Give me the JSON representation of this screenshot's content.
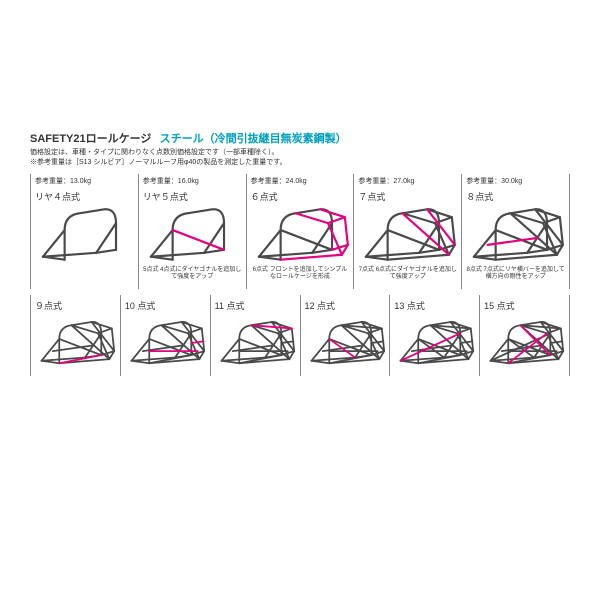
{
  "header": {
    "title": "SAFETY21ロールケージ",
    "subtitle": "スチール（冷間引抜継目無炭素鋼製）",
    "subtitle_color": "#00a0c0",
    "desc_line1": "価格設定は、車種・タイプに関わりなく点数別価格設定です（一部車種除く）。",
    "desc_line2": "※参考重量は［S13 シルビア］ノーマルルーフ用φ40の製品を測定した重量です。"
  },
  "colors": {
    "cage": "#4a4a4a",
    "accent": "#e6007e",
    "border": "#888888",
    "text": "#333333"
  },
  "row1": [
    {
      "weight": "参考重量：13.0kg",
      "label": "リヤ４点式",
      "variant": "r4",
      "caption": ""
    },
    {
      "weight": "参考重量：16.0kg",
      "label": "リヤ５点式",
      "variant": "r5",
      "caption": "5点式 4点式にダイヤゴナルを追加して強度をアップ"
    },
    {
      "weight": "参考重量：24.0kg",
      "label": "６点式",
      "variant": "p6",
      "caption": "6点式 フロントを追加してシンプルなロールケージを形成"
    },
    {
      "weight": "参考重量：27.0kg",
      "label": "７点式",
      "variant": "p7",
      "caption": "7点式 6点式にダイヤゴナルを追加して強度アップ"
    },
    {
      "weight": "参考重量：30.0kg",
      "label": "８点式",
      "variant": "p8",
      "caption": "8点式 7点式にリヤ横バーを追加して横方向の剛性をアップ"
    }
  ],
  "row2": [
    {
      "label": "９点式",
      "variant": "p9"
    },
    {
      "label": "10 点式",
      "variant": "p10"
    },
    {
      "label": "11 点式",
      "variant": "p11"
    },
    {
      "label": "12 点式",
      "variant": "p12"
    },
    {
      "label": "13 点式",
      "variant": "p13"
    },
    {
      "label": "15 点式",
      "variant": "p15"
    }
  ],
  "stroke_width": {
    "cage": 2.2,
    "accent": 2.2
  }
}
